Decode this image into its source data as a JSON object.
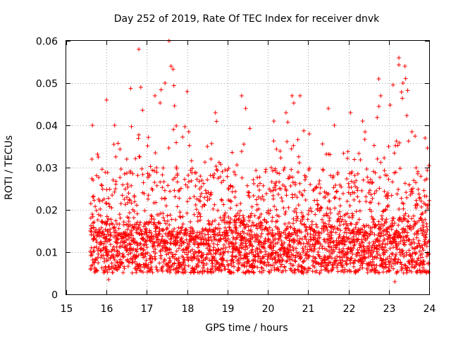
{
  "chart_data": {
    "type": "scatter",
    "title": "Day 252 of 2019, Rate Of TEC Index for receiver dnvk",
    "xlabel": "GPS time / hours",
    "ylabel": "ROTI / TECUs",
    "xlim": [
      15,
      24
    ],
    "ylim": [
      0,
      0.06
    ],
    "xticks": [
      15,
      16,
      17,
      18,
      19,
      20,
      21,
      22,
      23,
      24
    ],
    "yticks": [
      0,
      0.01,
      0.02,
      0.03,
      0.04,
      0.05,
      0.06
    ],
    "ytick_labels": [
      "0",
      "0.01",
      "0.02",
      "0.03",
      "0.04",
      "0.05",
      "0.06"
    ],
    "grid": true,
    "marker": "+",
    "color": "#ff0000",
    "series": [
      {
        "name": "ROTI",
        "data_start_hour": 15.6,
        "data_end_hour": 24.0,
        "typical_range": [
          0.005,
          0.03
        ],
        "envelope": [
          {
            "x": 15.65,
            "y": 0.04
          },
          {
            "x": 16.0,
            "y": 0.046
          },
          {
            "x": 16.2,
            "y": 0.04
          },
          {
            "x": 16.5,
            "y": 0.032
          },
          {
            "x": 16.8,
            "y": 0.058
          },
          {
            "x": 16.85,
            "y": 0.049
          },
          {
            "x": 17.2,
            "y": 0.047
          },
          {
            "x": 17.45,
            "y": 0.05
          },
          {
            "x": 17.55,
            "y": 0.06
          },
          {
            "x": 17.6,
            "y": 0.054
          },
          {
            "x": 18.0,
            "y": 0.048
          },
          {
            "x": 18.5,
            "y": 0.035
          },
          {
            "x": 18.7,
            "y": 0.043
          },
          {
            "x": 19.35,
            "y": 0.047
          },
          {
            "x": 19.45,
            "y": 0.044
          },
          {
            "x": 20.15,
            "y": 0.041
          },
          {
            "x": 20.45,
            "y": 0.043
          },
          {
            "x": 20.6,
            "y": 0.047
          },
          {
            "x": 20.8,
            "y": 0.047
          },
          {
            "x": 21.5,
            "y": 0.044
          },
          {
            "x": 21.65,
            "y": 0.04
          },
          {
            "x": 22.05,
            "y": 0.043
          },
          {
            "x": 22.35,
            "y": 0.041
          },
          {
            "x": 22.75,
            "y": 0.051
          },
          {
            "x": 22.8,
            "y": 0.047
          },
          {
            "x": 23.25,
            "y": 0.056
          },
          {
            "x": 23.4,
            "y": 0.054
          },
          {
            "x": 23.35,
            "y": 0.05
          },
          {
            "x": 23.9,
            "y": 0.037
          }
        ],
        "minimum_values": [
          {
            "x": 16.05,
            "y": 0.0035
          },
          {
            "x": 23.15,
            "y": 0.003
          }
        ]
      }
    ]
  }
}
